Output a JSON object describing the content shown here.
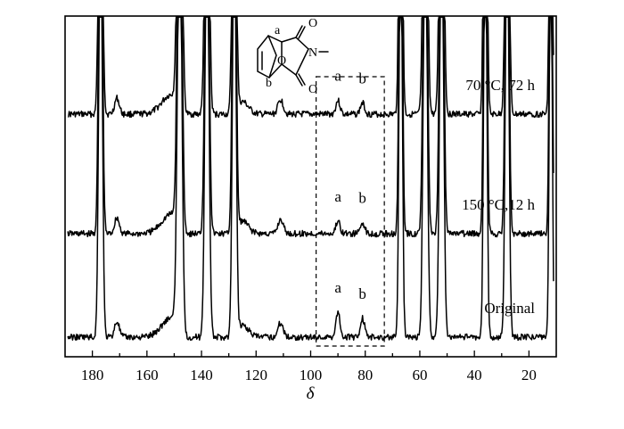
{
  "chart_data": {
    "type": "line",
    "title": "",
    "xlabel": "δ",
    "ylabel": "",
    "xlim": [
      190,
      10
    ],
    "x_reversed": true,
    "x_ticks": [
      180,
      160,
      140,
      120,
      100,
      80,
      60,
      40,
      20
    ],
    "grid": false,
    "series": [
      {
        "name": "70 °C, 72 h",
        "peaks": [
          {
            "label": "a",
            "x": 90,
            "height": 0.55
          },
          {
            "label": "b",
            "x": 81,
            "height": 0.45
          }
        ]
      },
      {
        "name": "150 °C,12 h",
        "peaks": [
          {
            "label": "a",
            "x": 90,
            "height": 0.5
          },
          {
            "label": "b",
            "x": 81,
            "height": 0.45
          }
        ]
      },
      {
        "name": "Original",
        "peaks": [
          {
            "label": "a",
            "x": 90,
            "height": 1.0
          },
          {
            "label": "b",
            "x": 81,
            "height": 0.75
          }
        ]
      }
    ],
    "highlight_region": {
      "x_from": 98,
      "x_to": 73,
      "style": "dashed box"
    },
    "inset_structure": {
      "atom_labels": [
        "a",
        "b"
      ],
      "heteroatom_labels": [
        "O",
        "N",
        "O"
      ]
    }
  }
}
